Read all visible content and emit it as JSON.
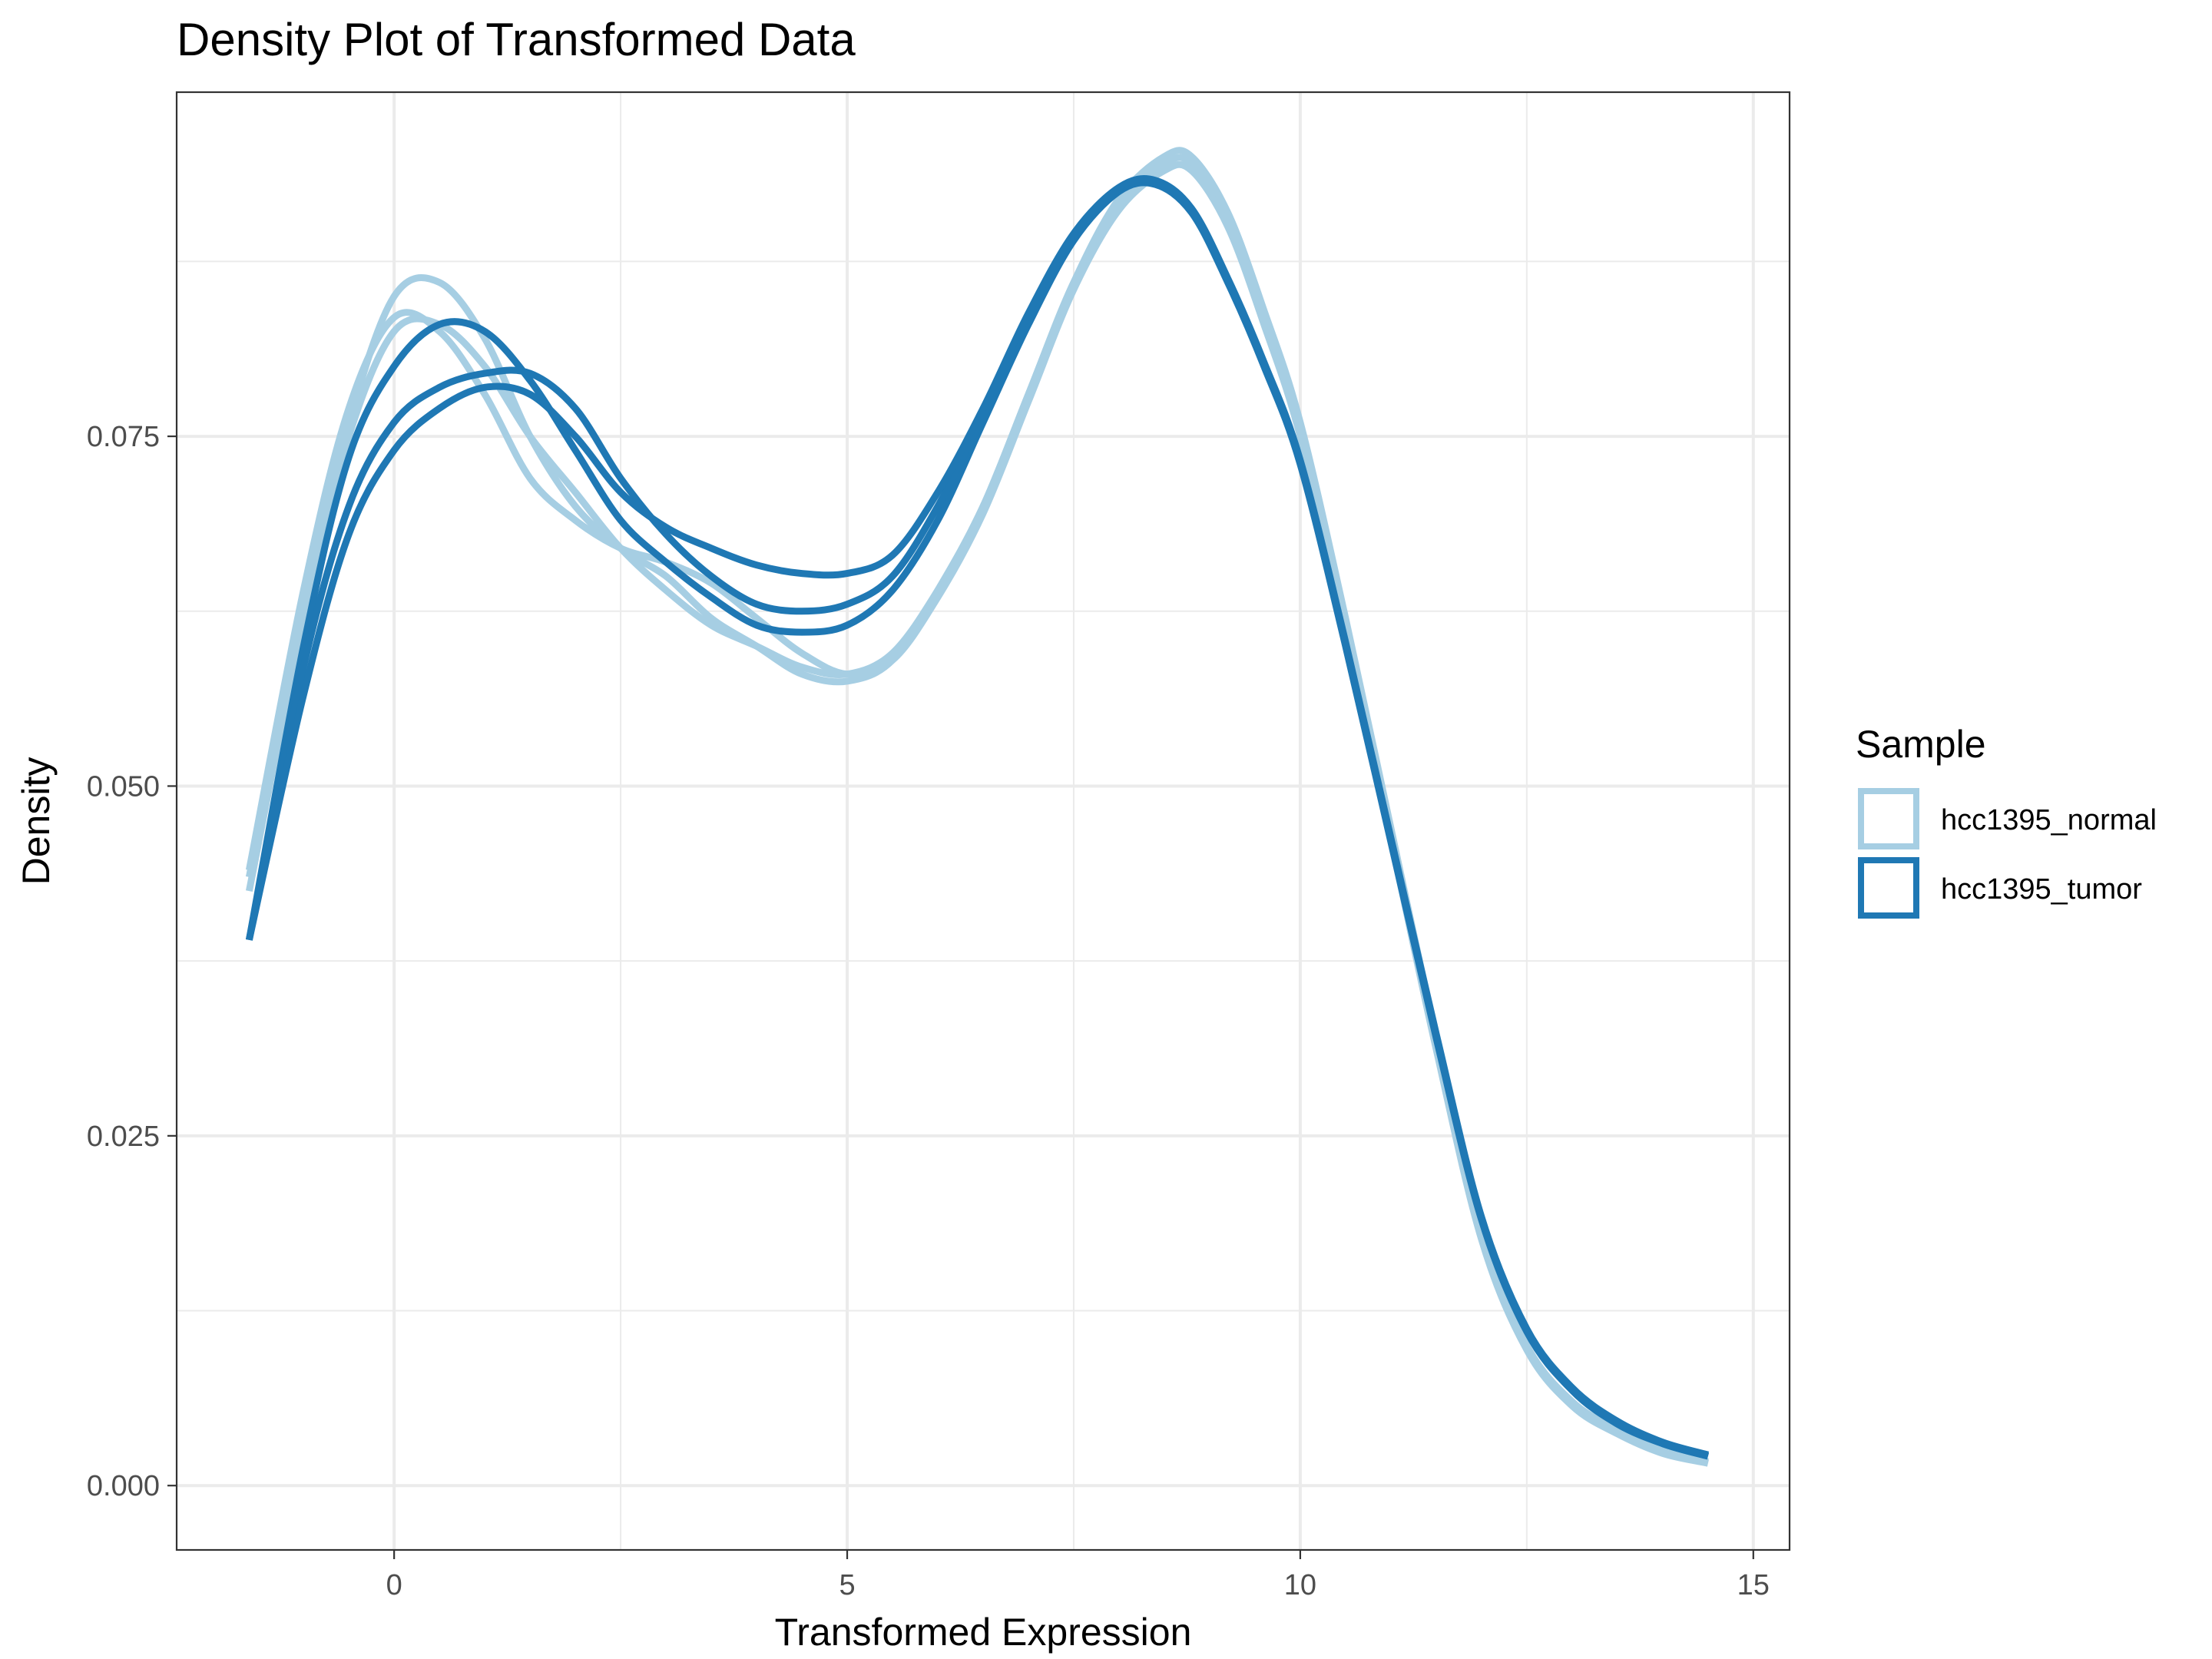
{
  "chart_data": {
    "type": "line",
    "title": "Density Plot of Transformed Data",
    "xlabel": "Transformed Expression",
    "ylabel": "Density",
    "xlim": [
      -2.4,
      15.4
    ],
    "ylim": [
      -0.0046,
      0.0996
    ],
    "x_ticks": [
      0,
      5,
      10,
      15
    ],
    "x_tick_labels": [
      "0",
      "5",
      "10",
      "15"
    ],
    "y_ticks": [
      0.0,
      0.025,
      0.05,
      0.075
    ],
    "y_tick_labels": [
      "0.000",
      "0.025",
      "0.050",
      "0.075"
    ],
    "grid": true,
    "legend": {
      "title": "Sample",
      "position": "right",
      "entries": [
        {
          "label": "hcc1395_normal",
          "color": "#a6cee3"
        },
        {
          "label": "hcc1395_tumor",
          "color": "#1f78b4"
        }
      ]
    },
    "series": [
      {
        "group": "hcc1395_normal",
        "color": "#a6cee3",
        "x": [
          -1.6,
          -1.0,
          -0.5,
          0.0,
          0.5,
          1.0,
          1.5,
          2.0,
          2.5,
          3.0,
          3.5,
          4.0,
          4.5,
          5.0,
          5.5,
          6.0,
          6.5,
          7.0,
          7.5,
          8.0,
          8.5,
          8.8,
          9.2,
          9.6,
          10.0,
          10.5,
          11.0,
          11.5,
          12.0,
          12.5,
          13.0,
          13.5,
          14.0,
          14.5
        ],
        "y": [
          0.0435,
          0.063,
          0.076,
          0.085,
          0.086,
          0.082,
          0.075,
          0.07,
          0.067,
          0.065,
          0.062,
          0.06,
          0.058,
          0.0575,
          0.059,
          0.064,
          0.07,
          0.078,
          0.086,
          0.092,
          0.095,
          0.095,
          0.091,
          0.084,
          0.076,
          0.062,
          0.047,
          0.032,
          0.018,
          0.01,
          0.006,
          0.004,
          0.0025,
          0.0017
        ]
      },
      {
        "group": "hcc1395_normal",
        "color": "#a6cee3",
        "x": [
          -1.6,
          -1.0,
          -0.5,
          0.0,
          0.5,
          1.0,
          1.5,
          2.0,
          2.5,
          3.0,
          3.5,
          4.0,
          4.5,
          5.0,
          5.5,
          6.0,
          6.5,
          7.0,
          7.5,
          8.0,
          8.5,
          8.8,
          9.2,
          9.6,
          10.0,
          10.5,
          11.0,
          11.5,
          12.0,
          12.5,
          13.0,
          13.5,
          14.0,
          14.5
        ],
        "y": [
          0.0425,
          0.062,
          0.075,
          0.0825,
          0.083,
          0.08,
          0.075,
          0.071,
          0.067,
          0.064,
          0.0615,
          0.06,
          0.0585,
          0.058,
          0.0595,
          0.064,
          0.07,
          0.078,
          0.086,
          0.0915,
          0.0945,
          0.0945,
          0.0905,
          0.0835,
          0.0755,
          0.0615,
          0.0465,
          0.0315,
          0.0178,
          0.0098,
          0.0058,
          0.0038,
          0.0024,
          0.0016
        ]
      },
      {
        "group": "hcc1395_normal",
        "color": "#a6cee3",
        "x": [
          -1.6,
          -1.0,
          -0.5,
          0.0,
          0.5,
          1.0,
          1.5,
          2.0,
          2.5,
          3.0,
          3.5,
          4.0,
          4.5,
          5.0,
          5.5,
          6.0,
          6.5,
          7.0,
          7.5,
          8.0,
          8.5,
          8.8,
          9.2,
          9.6,
          10.0,
          10.5,
          11.0,
          11.5,
          12.0,
          12.5,
          13.0,
          13.5,
          14.0,
          14.5
        ],
        "y": [
          0.044,
          0.064,
          0.077,
          0.0835,
          0.0825,
          0.078,
          0.072,
          0.069,
          0.067,
          0.066,
          0.0645,
          0.062,
          0.0595,
          0.058,
          0.059,
          0.0635,
          0.0695,
          0.0775,
          0.0855,
          0.0912,
          0.094,
          0.094,
          0.09,
          0.083,
          0.075,
          0.0612,
          0.0462,
          0.0312,
          0.0176,
          0.0097,
          0.0057,
          0.0037,
          0.0023,
          0.0016
        ]
      },
      {
        "group": "hcc1395_tumor",
        "color": "#1f78b4",
        "x": [
          -1.6,
          -1.0,
          -0.5,
          0.0,
          0.5,
          1.0,
          1.5,
          2.0,
          2.5,
          3.0,
          3.5,
          4.0,
          4.5,
          5.0,
          5.5,
          6.0,
          6.5,
          7.0,
          7.5,
          8.0,
          8.4,
          8.8,
          9.2,
          9.6,
          10.0,
          10.5,
          11.0,
          11.5,
          12.0,
          12.5,
          13.0,
          13.5,
          14.0,
          14.5
        ],
        "y": [
          0.039,
          0.06,
          0.0735,
          0.08,
          0.083,
          0.0825,
          0.079,
          0.074,
          0.069,
          0.066,
          0.0635,
          0.0615,
          0.061,
          0.0615,
          0.064,
          0.069,
          0.076,
          0.083,
          0.089,
          0.0925,
          0.093,
          0.091,
          0.086,
          0.08,
          0.073,
          0.06,
          0.046,
          0.032,
          0.019,
          0.011,
          0.0068,
          0.0044,
          0.003,
          0.0021
        ]
      },
      {
        "group": "hcc1395_tumor",
        "color": "#1f78b4",
        "x": [
          -1.6,
          -1.0,
          -0.5,
          0.0,
          0.5,
          1.0,
          1.5,
          2.0,
          2.5,
          3.0,
          3.5,
          4.0,
          4.5,
          5.0,
          5.5,
          6.0,
          6.5,
          7.0,
          7.5,
          8.0,
          8.4,
          8.8,
          9.2,
          9.6,
          10.0,
          10.5,
          11.0,
          11.5,
          12.0,
          12.5,
          13.0,
          13.5,
          14.0,
          14.5
        ],
        "y": [
          0.039,
          0.0585,
          0.07,
          0.076,
          0.0785,
          0.0795,
          0.0795,
          0.077,
          0.072,
          0.068,
          0.065,
          0.063,
          0.0625,
          0.063,
          0.065,
          0.07,
          0.0765,
          0.0835,
          0.0893,
          0.0927,
          0.0932,
          0.0912,
          0.0862,
          0.0802,
          0.0732,
          0.0602,
          0.0462,
          0.0322,
          0.0191,
          0.0111,
          0.0069,
          0.0045,
          0.003,
          0.0021
        ]
      },
      {
        "group": "hcc1395_tumor",
        "color": "#1f78b4",
        "x": [
          -1.6,
          -1.0,
          -0.5,
          0.0,
          0.5,
          1.0,
          1.5,
          2.0,
          2.5,
          3.0,
          3.5,
          4.0,
          4.5,
          5.0,
          5.5,
          6.0,
          6.5,
          7.0,
          7.5,
          8.0,
          8.4,
          8.8,
          9.2,
          9.6,
          10.0,
          10.5,
          11.0,
          11.5,
          12.0,
          12.5,
          13.0,
          13.5,
          14.0,
          14.5
        ],
        "y": [
          0.039,
          0.0565,
          0.068,
          0.074,
          0.077,
          0.0785,
          0.078,
          0.075,
          0.071,
          0.0685,
          0.067,
          0.0658,
          0.0652,
          0.0652,
          0.0665,
          0.071,
          0.077,
          0.0838,
          0.0895,
          0.0928,
          0.0933,
          0.0913,
          0.0863,
          0.0803,
          0.0733,
          0.0603,
          0.0463,
          0.0323,
          0.0192,
          0.0112,
          0.007,
          0.0046,
          0.0031,
          0.0022
        ]
      }
    ]
  }
}
